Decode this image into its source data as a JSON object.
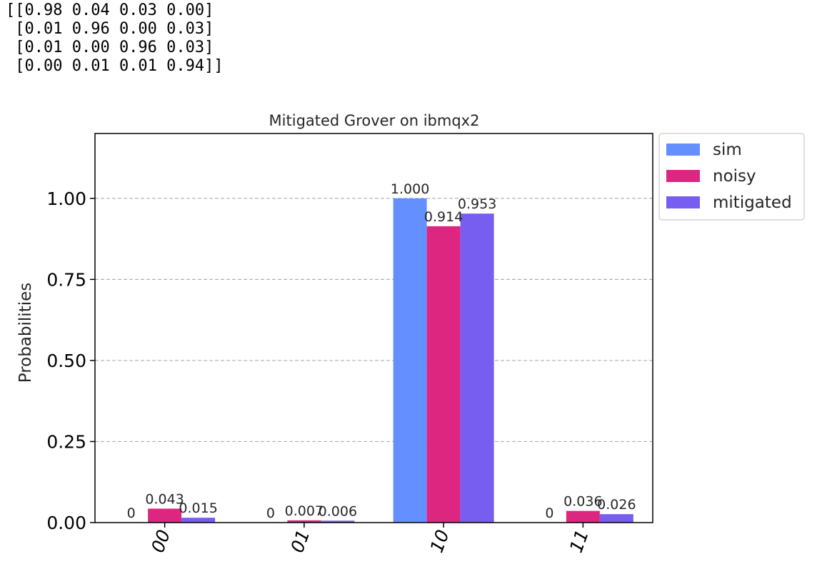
{
  "output": {
    "matrix_lines": [
      "[[0.98 0.04 0.03 0.00]",
      " [0.01 0.96 0.00 0.03]",
      " [0.01 0.00 0.96 0.03]",
      " [0.00 0.01 0.01 0.94]]"
    ]
  },
  "chart_data": {
    "type": "bar",
    "title": "Mitigated Grover on ibmqx2",
    "xlabel": "",
    "ylabel": "Probabilities",
    "categories": [
      "00",
      "01",
      "10",
      "11"
    ],
    "series": [
      {
        "name": "sim",
        "color": "#648fff",
        "values": [
          0,
          0,
          1.0,
          0
        ],
        "labels": [
          "0",
          "0",
          "1.000",
          "0"
        ]
      },
      {
        "name": "noisy",
        "color": "#dc267f",
        "values": [
          0.043,
          0.007,
          0.914,
          0.036
        ],
        "labels": [
          "0.043",
          "0.007",
          "0.914",
          "0.036"
        ]
      },
      {
        "name": "mitigated",
        "color": "#785ef0",
        "values": [
          0.015,
          0.006,
          0.953,
          0.026
        ],
        "labels": [
          "0.015",
          "0.006",
          "0.953",
          "0.026"
        ]
      }
    ],
    "ylim": [
      0,
      1.2
    ],
    "yticks": [
      "0.00",
      "0.25",
      "0.50",
      "0.75",
      "1.00"
    ],
    "ytick_values": [
      0,
      0.25,
      0.5,
      0.75,
      1.0
    ],
    "grid": "y-dashed",
    "legend": "outside-top-right",
    "xtick_rotation_deg": -70
  }
}
